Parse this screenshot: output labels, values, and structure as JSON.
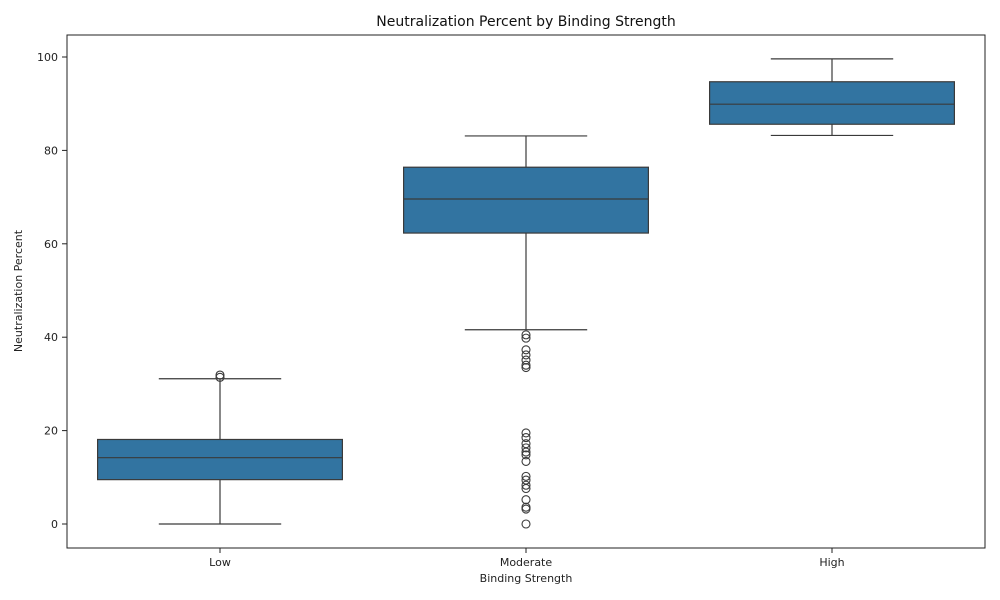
{
  "chart_data": {
    "type": "box",
    "title": "Neutralization Percent by Binding Strength",
    "xlabel": "Binding Strength",
    "ylabel": "Neutralization Percent",
    "ylim": [
      -5,
      105
    ],
    "yticks": [
      0,
      20,
      40,
      60,
      80,
      100
    ],
    "grid": false,
    "box_color": "#3274a1",
    "line_color": "#3a3a3a",
    "categories": [
      "Low",
      "Moderate",
      "High"
    ],
    "boxes": [
      {
        "category": "Low",
        "whisker_low": 0,
        "q1": 9.5,
        "median": 14.2,
        "q3": 18.1,
        "whisker_high": 31.1,
        "outliers": [
          31.4,
          31.9
        ]
      },
      {
        "category": "Moderate",
        "whisker_low": 41.6,
        "q1": 62.3,
        "median": 69.6,
        "q3": 76.4,
        "whisker_high": 83.1,
        "outliers": [
          40.5,
          39.8,
          37.3,
          36.2,
          35.1,
          34.0,
          33.5,
          19.5,
          18.5,
          17.2,
          16.3,
          15.4,
          14.8,
          13.4,
          10.2,
          9.4,
          8.3,
          7.6,
          5.2,
          3.6,
          3.2,
          0.0
        ]
      },
      {
        "category": "High",
        "whisker_low": 83.2,
        "q1": 85.6,
        "median": 89.9,
        "q3": 94.7,
        "whisker_high": 99.6,
        "outliers": []
      }
    ]
  }
}
